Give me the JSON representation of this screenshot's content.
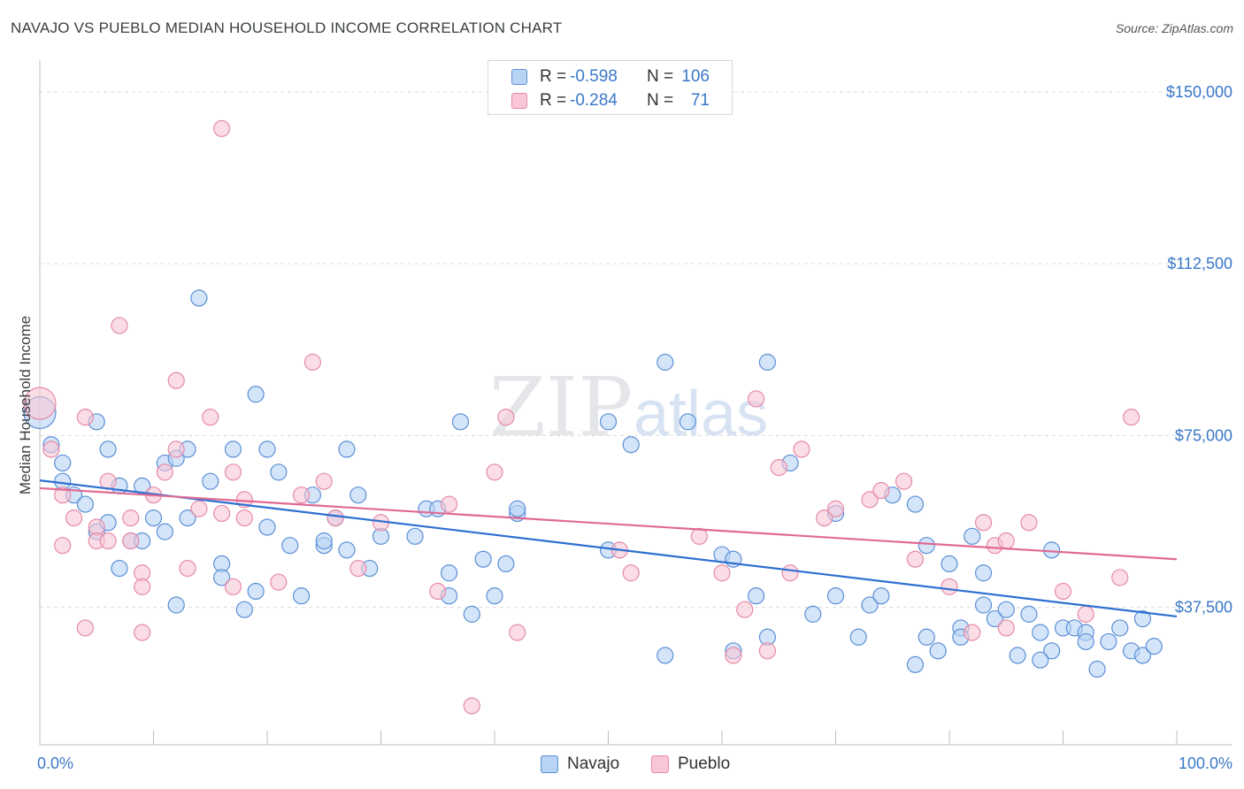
{
  "header": {
    "title": "NAVAJO VS PUEBLO MEDIAN HOUSEHOLD INCOME CORRELATION CHART",
    "source": "Source: ZipAtlas.com"
  },
  "watermark": {
    "zip": "ZIP",
    "atlas": "atlas"
  },
  "legend": {
    "r_label": "R =",
    "n_label": "N =",
    "navajo": {
      "r": "-0.598",
      "n": "106"
    },
    "pueblo": {
      "r": "-0.284",
      "n": "71"
    }
  },
  "bottom_legend": {
    "navajo": "Navajo",
    "pueblo": "Pueblo"
  },
  "colors": {
    "navajo_fill": "#b9d3f5",
    "navajo_stroke": "#5b8fd6",
    "navajo_line": "#2e6fd1",
    "pueblo_fill": "#f8c6d6",
    "pueblo_stroke": "#e58aa8",
    "pueblo_line": "#e06a93",
    "axis_text": "#3a78c9",
    "grid": "#dcdcdc"
  },
  "chart_data": {
    "type": "scatter",
    "title": "NAVAJO VS PUEBLO MEDIAN HOUSEHOLD INCOME CORRELATION CHART",
    "xlabel": "",
    "ylabel": "Median Household Income",
    "x_tick_labels": [
      "0.0%",
      "100.0%"
    ],
    "y_tick_labels": [
      "$150,000",
      "$112,500",
      "$75,000",
      "$37,500"
    ],
    "y_ticks": [
      150000,
      112500,
      75000,
      37500
    ],
    "xlim": [
      0,
      1
    ],
    "ylim": [
      7500,
      155000
    ],
    "grid": true,
    "legend_position": "top-center",
    "series": [
      {
        "name": "Navajo",
        "trend": {
          "x0": 0.0,
          "y0": 65200,
          "x1": 1.0,
          "y1": 35500
        },
        "points": [
          [
            0.0,
            80000
          ],
          [
            0.01,
            73000
          ],
          [
            0.02,
            69000
          ],
          [
            0.02,
            65000
          ],
          [
            0.03,
            62000
          ],
          [
            0.04,
            60000
          ],
          [
            0.05,
            78000
          ],
          [
            0.05,
            54000
          ],
          [
            0.06,
            56000
          ],
          [
            0.06,
            72000
          ],
          [
            0.07,
            46000
          ],
          [
            0.07,
            64000
          ],
          [
            0.08,
            52000
          ],
          [
            0.09,
            64000
          ],
          [
            0.09,
            52000
          ],
          [
            0.1,
            57000
          ],
          [
            0.11,
            54000
          ],
          [
            0.11,
            69000
          ],
          [
            0.12,
            70000
          ],
          [
            0.13,
            57000
          ],
          [
            0.12,
            38000
          ],
          [
            0.13,
            72000
          ],
          [
            0.14,
            105000
          ],
          [
            0.15,
            65000
          ],
          [
            0.16,
            47000
          ],
          [
            0.16,
            44000
          ],
          [
            0.17,
            72000
          ],
          [
            0.18,
            37000
          ],
          [
            0.19,
            84000
          ],
          [
            0.19,
            41000
          ],
          [
            0.2,
            55000
          ],
          [
            0.2,
            72000
          ],
          [
            0.21,
            67000
          ],
          [
            0.22,
            51000
          ],
          [
            0.23,
            40000
          ],
          [
            0.24,
            62000
          ],
          [
            0.25,
            51000
          ],
          [
            0.25,
            52000
          ],
          [
            0.26,
            57000
          ],
          [
            0.27,
            72000
          ],
          [
            0.27,
            50000
          ],
          [
            0.28,
            62000
          ],
          [
            0.29,
            46000
          ],
          [
            0.3,
            53000
          ],
          [
            0.33,
            53000
          ],
          [
            0.34,
            59000
          ],
          [
            0.35,
            59000
          ],
          [
            0.36,
            45000
          ],
          [
            0.36,
            40000
          ],
          [
            0.37,
            78000
          ],
          [
            0.38,
            36000
          ],
          [
            0.39,
            48000
          ],
          [
            0.4,
            40000
          ],
          [
            0.41,
            47000
          ],
          [
            0.42,
            58000
          ],
          [
            0.42,
            59000
          ],
          [
            0.5,
            50000
          ],
          [
            0.5,
            78000
          ],
          [
            0.52,
            73000
          ],
          [
            0.55,
            27000
          ],
          [
            0.55,
            91000
          ],
          [
            0.57,
            78000
          ],
          [
            0.6,
            49000
          ],
          [
            0.61,
            48000
          ],
          [
            0.61,
            28000
          ],
          [
            0.63,
            40000
          ],
          [
            0.64,
            91000
          ],
          [
            0.64,
            31000
          ],
          [
            0.66,
            69000
          ],
          [
            0.68,
            36000
          ],
          [
            0.7,
            40000
          ],
          [
            0.7,
            58000
          ],
          [
            0.72,
            31000
          ],
          [
            0.73,
            38000
          ],
          [
            0.74,
            40000
          ],
          [
            0.75,
            62000
          ],
          [
            0.77,
            25000
          ],
          [
            0.77,
            60000
          ],
          [
            0.78,
            51000
          ],
          [
            0.78,
            31000
          ],
          [
            0.79,
            28000
          ],
          [
            0.8,
            47000
          ],
          [
            0.81,
            33000
          ],
          [
            0.81,
            31000
          ],
          [
            0.82,
            53000
          ],
          [
            0.83,
            45000
          ],
          [
            0.83,
            38000
          ],
          [
            0.84,
            35000
          ],
          [
            0.85,
            37000
          ],
          [
            0.86,
            27000
          ],
          [
            0.87,
            36000
          ],
          [
            0.88,
            32000
          ],
          [
            0.89,
            28000
          ],
          [
            0.89,
            50000
          ],
          [
            0.9,
            33000
          ],
          [
            0.91,
            33000
          ],
          [
            0.92,
            32000
          ],
          [
            0.93,
            24000
          ],
          [
            0.94,
            30000
          ],
          [
            0.95,
            33000
          ],
          [
            0.96,
            28000
          ],
          [
            0.97,
            35000
          ],
          [
            0.97,
            27000
          ],
          [
            0.98,
            29000
          ],
          [
            0.92,
            30000
          ],
          [
            0.88,
            26000
          ]
        ]
      },
      {
        "name": "Pueblo",
        "trend": {
          "x0": 0.0,
          "y0": 63500,
          "x1": 1.0,
          "y1": 48000
        },
        "points": [
          [
            0.0,
            82000
          ],
          [
            0.01,
            72000
          ],
          [
            0.02,
            62000
          ],
          [
            0.02,
            51000
          ],
          [
            0.03,
            57000
          ],
          [
            0.04,
            79000
          ],
          [
            0.04,
            33000
          ],
          [
            0.05,
            55000
          ],
          [
            0.05,
            52000
          ],
          [
            0.06,
            52000
          ],
          [
            0.06,
            65000
          ],
          [
            0.07,
            99000
          ],
          [
            0.08,
            52000
          ],
          [
            0.08,
            57000
          ],
          [
            0.09,
            45000
          ],
          [
            0.09,
            42000
          ],
          [
            0.09,
            32000
          ],
          [
            0.1,
            62000
          ],
          [
            0.11,
            67000
          ],
          [
            0.12,
            87000
          ],
          [
            0.12,
            72000
          ],
          [
            0.13,
            46000
          ],
          [
            0.14,
            59000
          ],
          [
            0.15,
            79000
          ],
          [
            0.16,
            58000
          ],
          [
            0.16,
            142000
          ],
          [
            0.17,
            67000
          ],
          [
            0.17,
            42000
          ],
          [
            0.18,
            57000
          ],
          [
            0.18,
            61000
          ],
          [
            0.21,
            43000
          ],
          [
            0.23,
            62000
          ],
          [
            0.24,
            91000
          ],
          [
            0.25,
            65000
          ],
          [
            0.26,
            57000
          ],
          [
            0.28,
            46000
          ],
          [
            0.3,
            56000
          ],
          [
            0.35,
            41000
          ],
          [
            0.36,
            60000
          ],
          [
            0.38,
            16000
          ],
          [
            0.4,
            67000
          ],
          [
            0.41,
            79000
          ],
          [
            0.42,
            32000
          ],
          [
            0.51,
            50000
          ],
          [
            0.52,
            45000
          ],
          [
            0.58,
            53000
          ],
          [
            0.6,
            45000
          ],
          [
            0.61,
            27000
          ],
          [
            0.62,
            37000
          ],
          [
            0.63,
            83000
          ],
          [
            0.64,
            28000
          ],
          [
            0.65,
            68000
          ],
          [
            0.66,
            45000
          ],
          [
            0.67,
            72000
          ],
          [
            0.69,
            57000
          ],
          [
            0.7,
            59000
          ],
          [
            0.73,
            61000
          ],
          [
            0.74,
            63000
          ],
          [
            0.76,
            65000
          ],
          [
            0.77,
            48000
          ],
          [
            0.8,
            42000
          ],
          [
            0.82,
            32000
          ],
          [
            0.83,
            56000
          ],
          [
            0.84,
            51000
          ],
          [
            0.85,
            52000
          ],
          [
            0.85,
            33000
          ],
          [
            0.87,
            56000
          ],
          [
            0.9,
            41000
          ],
          [
            0.92,
            36000
          ],
          [
            0.95,
            44000
          ],
          [
            0.96,
            79000
          ]
        ]
      }
    ]
  }
}
